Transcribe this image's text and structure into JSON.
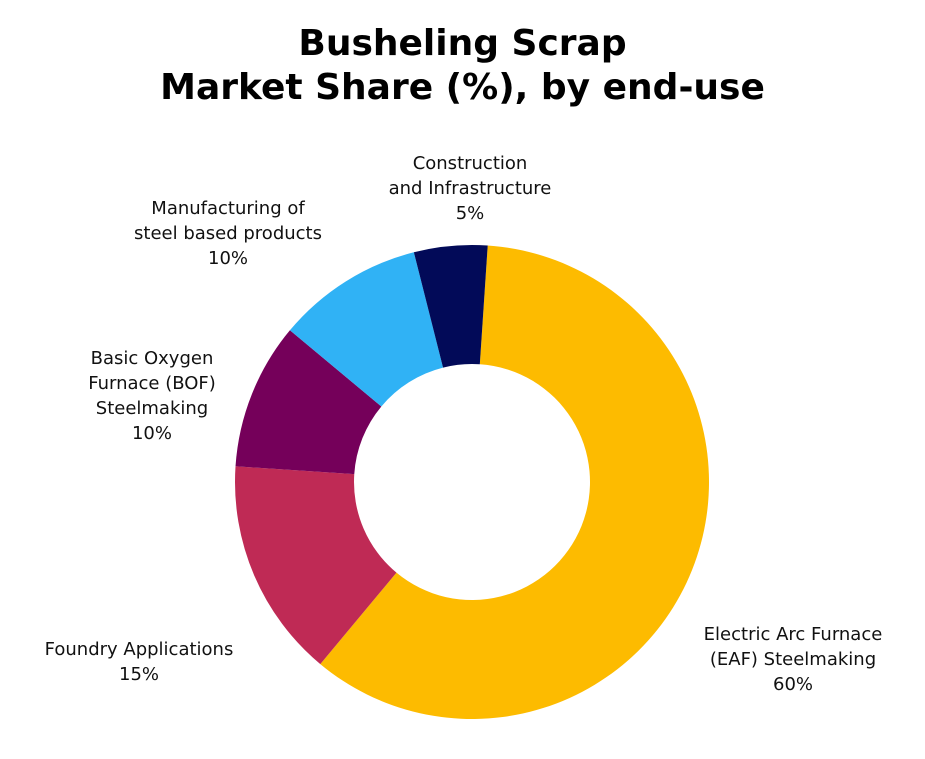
{
  "chart_data": {
    "type": "pie",
    "variant": "donut",
    "title": [
      "Busheling Scrap",
      "Market Share (%), by end-use"
    ],
    "unit": "%",
    "slices": [
      {
        "label": [
          "Electric Arc Furnace",
          "(EAF) Steelmaking"
        ],
        "value": 60,
        "value_label": "60%",
        "color": "#FDBB00"
      },
      {
        "label": [
          "Foundry Applications"
        ],
        "value": 15,
        "value_label": "15%",
        "color": "#BF2A55"
      },
      {
        "label": [
          "Basic Oxygen",
          "Furnace (BOF)",
          "Steelmaking"
        ],
        "value": 10,
        "value_label": "10%",
        "color": "#75005A"
      },
      {
        "label": [
          "Manufacturing of",
          "steel based products"
        ],
        "value": 10,
        "value_label": "10%",
        "color": "#30B2F5"
      },
      {
        "label": [
          "Construction",
          "and Infrastructure"
        ],
        "value": 5,
        "value_label": "5%",
        "color": "#020A58"
      }
    ]
  }
}
